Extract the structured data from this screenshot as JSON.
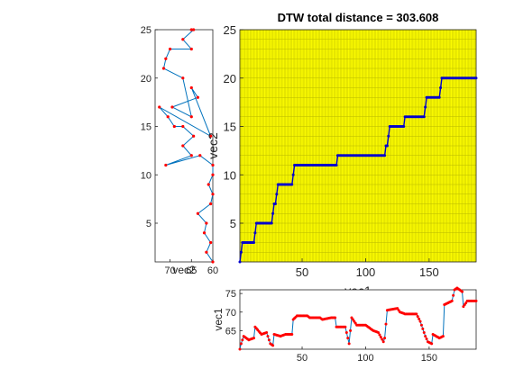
{
  "chart_data": [
    {
      "id": "left",
      "type": "line",
      "title": "",
      "xlabel": "vec2",
      "ylabel": "",
      "xlim": [
        60,
        73.5
      ],
      "x_reversed": true,
      "ylim": [
        1,
        25
      ],
      "xticks": [
        70,
        65,
        60
      ],
      "yticks": [
        5,
        10,
        15,
        20,
        25
      ],
      "line_color": "#0072BD",
      "marker_color": "#FF0000",
      "series": [
        {
          "x": [
            60,
            61.5,
            60.5,
            62,
            61.5,
            63.5,
            60.5,
            60,
            61,
            60,
            60,
            63,
            71,
            65,
            67,
            64.5,
            67,
            69,
            70.5,
            72.5,
            60.5,
            65,
            63.5,
            69.5,
            65,
            67,
            71.5,
            71,
            70,
            65,
            67,
            64.5,
            65
          ],
          "y": [
            1,
            2,
            3,
            4,
            5,
            6,
            7,
            8,
            9,
            10,
            11,
            12,
            11,
            12,
            13,
            14,
            15,
            15,
            16,
            17,
            14,
            19,
            18,
            17,
            16,
            20,
            21,
            22,
            23,
            23,
            24,
            25,
            25
          ]
        }
      ]
    },
    {
      "id": "main",
      "type": "line",
      "title": "DTW total distance = 303.608",
      "xlabel": "vec1",
      "ylabel": "vec2",
      "xlim": [
        1,
        187
      ],
      "ylim": [
        1,
        25
      ],
      "xticks": [
        50,
        100,
        150
      ],
      "yticks": [
        5,
        10,
        15,
        20,
        25
      ],
      "background": "#FFFF00",
      "grid_color": "#B8B800",
      "line_color": "#0000CC",
      "path_steps": [
        [
          1,
          1
        ],
        [
          2,
          2
        ],
        [
          3,
          3
        ],
        [
          12,
          3
        ],
        [
          13,
          4
        ],
        [
          14,
          5
        ],
        [
          26,
          5
        ],
        [
          27,
          6
        ],
        [
          29,
          7
        ],
        [
          30,
          8
        ],
        [
          32,
          9
        ],
        [
          42,
          9
        ],
        [
          43,
          10
        ],
        [
          44,
          11
        ],
        [
          77,
          11
        ],
        [
          78,
          12
        ],
        [
          115,
          12
        ],
        [
          117,
          13
        ],
        [
          118,
          14
        ],
        [
          119,
          15
        ],
        [
          130,
          15
        ],
        [
          131,
          16
        ],
        [
          146,
          16
        ],
        [
          147,
          17
        ],
        [
          148,
          18
        ],
        [
          158,
          18
        ],
        [
          160,
          20
        ],
        [
          187,
          20
        ]
      ]
    },
    {
      "id": "bottom",
      "type": "line",
      "title": "",
      "xlabel": "",
      "ylabel": "vec1",
      "xlim": [
        1,
        187
      ],
      "ylim": [
        60,
        76
      ],
      "xticks": [
        50,
        100,
        150
      ],
      "yticks": [
        65,
        70,
        75
      ],
      "line_color": "#0072BD",
      "marker_color": "#FF0000",
      "anchors": [
        [
          1,
          60
        ],
        [
          2,
          61.5
        ],
        [
          4,
          63.5
        ],
        [
          8,
          62.5
        ],
        [
          12,
          63
        ],
        [
          13,
          66
        ],
        [
          18,
          64
        ],
        [
          22,
          64.5
        ],
        [
          25,
          61.5
        ],
        [
          27,
          61
        ],
        [
          28,
          64
        ],
        [
          33,
          63.5
        ],
        [
          37,
          64
        ],
        [
          42,
          64
        ],
        [
          43,
          68
        ],
        [
          46,
          69
        ],
        [
          54,
          69
        ],
        [
          56,
          68.5
        ],
        [
          64,
          68.5
        ],
        [
          66,
          68
        ],
        [
          73,
          68.5
        ],
        [
          76,
          68.5
        ],
        [
          77,
          66
        ],
        [
          84,
          66
        ],
        [
          87,
          61.5
        ],
        [
          89,
          68.5
        ],
        [
          93,
          66.5
        ],
        [
          100,
          66.5
        ],
        [
          106,
          65
        ],
        [
          110,
          64.5
        ],
        [
          114,
          62
        ],
        [
          115,
          63
        ],
        [
          117,
          70.5
        ],
        [
          125,
          71
        ],
        [
          127,
          70
        ],
        [
          131,
          69.5
        ],
        [
          140,
          69.5
        ],
        [
          143,
          67.5
        ],
        [
          147,
          63.5
        ],
        [
          149,
          62
        ],
        [
          152,
          61.5
        ],
        [
          153,
          64
        ],
        [
          158,
          63
        ],
        [
          161,
          63.5
        ],
        [
          162,
          72
        ],
        [
          168,
          73
        ],
        [
          170,
          76
        ],
        [
          172,
          76.5
        ],
        [
          176,
          75.5
        ],
        [
          177,
          71.5
        ],
        [
          180,
          73
        ],
        [
          187,
          73
        ]
      ]
    }
  ]
}
